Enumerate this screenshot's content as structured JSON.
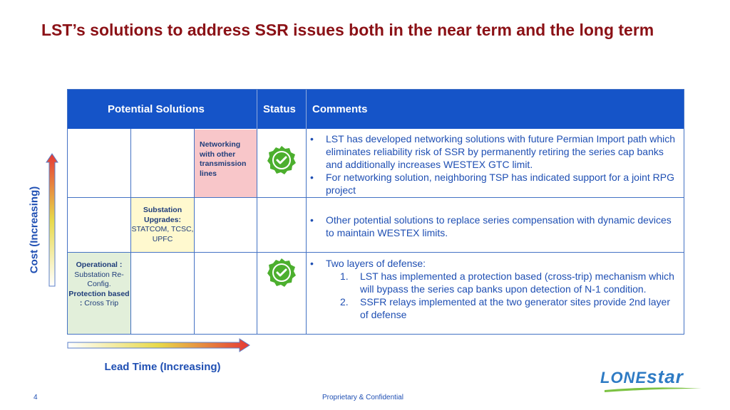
{
  "title": "LST’s solutions to address SSR issues both in the near term and the long term",
  "table": {
    "headers": {
      "solutions": "Potential Solutions",
      "status": "Status",
      "comments": "Comments"
    },
    "rows": [
      {
        "solution_bold": "Networking with other transmission lines",
        "status_icon": "check-badge-icon",
        "comments": [
          "LST has developed networking solutions with future Permian Import path which eliminates reliability risk of SSR by permanently retiring the series cap banks and additionally increases WESTEX GTC limit.",
          "For networking solution, neighboring TSP has indicated support for a joint RPG project"
        ]
      },
      {
        "solution_bold": "Substation Upgrades:",
        "solution_text": "STATCOM, TCSC, UPFC",
        "comments": [
          "Other potential solutions to replace series compensation with dynamic devices to maintain WESTEX limits."
        ]
      },
      {
        "solution_bold_1": "Operational :",
        "solution_text_1": "Substation Re-Config.",
        "solution_bold_2": "Protection based :",
        "solution_text_2": "Cross Trip",
        "status_icon": "check-badge-icon",
        "comment_intro": "Two layers of defense:",
        "comment_items": [
          {
            "num": "1.",
            "text": "LST has implemented a protection based (cross-trip) mechanism which will bypass the series cap banks upon detection of N-1 condition."
          },
          {
            "num": "2.",
            "text": "SSFR relays implemented at the two generator sites provide 2nd layer of defense"
          }
        ]
      }
    ]
  },
  "axes": {
    "vertical_label": "Cost (Increasing)",
    "horizontal_label": "Lead Time (Increasing)"
  },
  "footer": {
    "page_number": "4",
    "confidential": "Proprietary & Confidential"
  },
  "logo": {
    "part1": "LONE",
    "part2": "star"
  },
  "colors": {
    "title": "#8b1116",
    "header_bg": "#1554c8",
    "check_green": "#4caf2e",
    "pink_cell": "#f8c6c9",
    "yellow_cell": "#fff9cf",
    "green_cell": "#e2efda"
  }
}
